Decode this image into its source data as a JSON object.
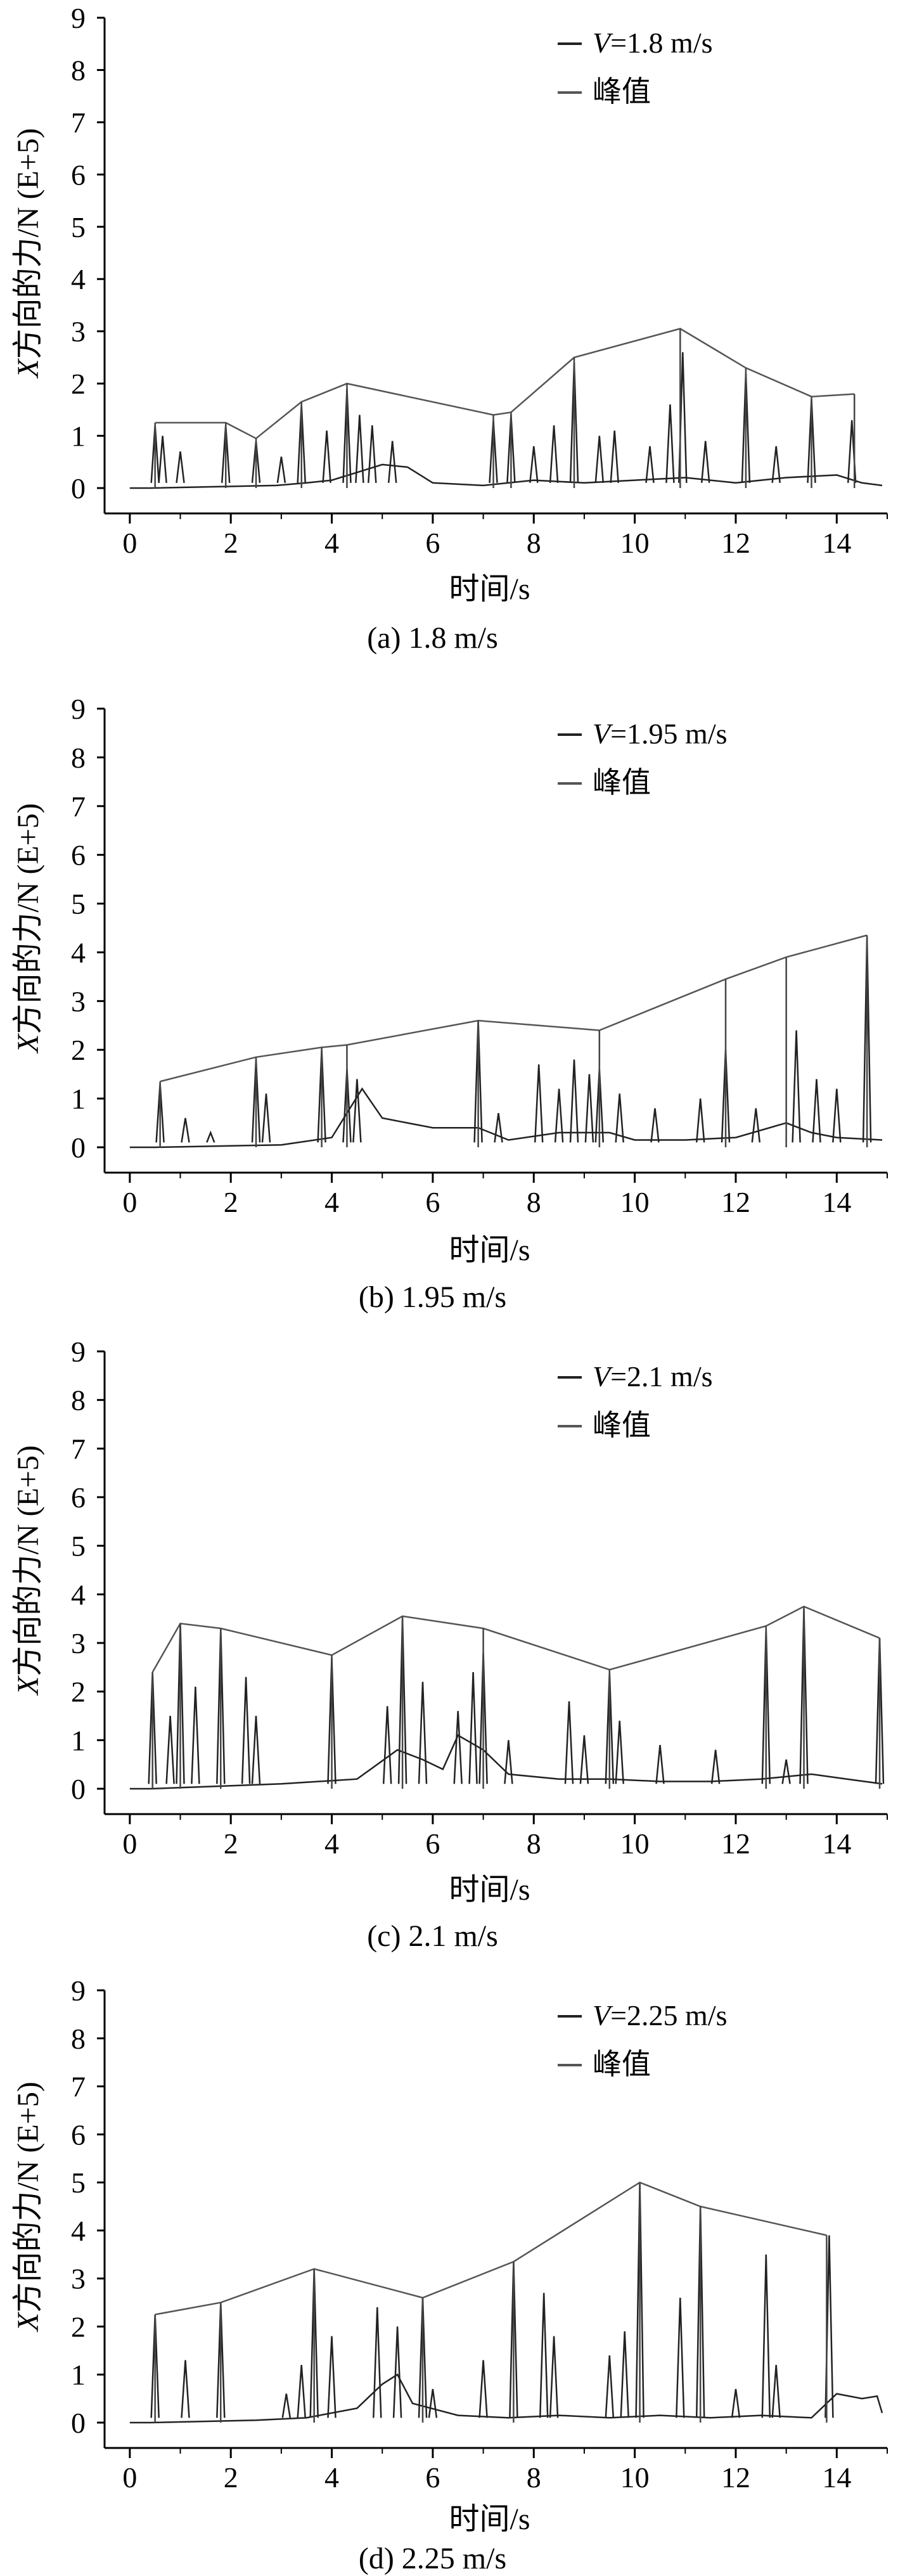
{
  "chart_data": [
    {
      "type": "line",
      "caption": "(a) 1.8 m/s",
      "xlabel": "时间/s",
      "ylabel": "X方向的力/N (E+5)",
      "xlim": [
        -0.5,
        15
      ],
      "ylim": [
        0,
        9
      ],
      "xticks": [
        0,
        2,
        4,
        6,
        8,
        10,
        12,
        14
      ],
      "yticks": [
        0,
        1,
        2,
        3,
        4,
        5,
        6,
        7,
        8,
        9
      ],
      "legend_position": "top-right",
      "series": [
        {
          "name": "V=1.8 m/s",
          "legend_prefix": "V",
          "legend_suffix": "=1.8 m/s",
          "spikes": [
            [
              0.5,
              1.2
            ],
            [
              0.65,
              1.0
            ],
            [
              1.0,
              0.7
            ],
            [
              1.9,
              1.2
            ],
            [
              2.5,
              0.9
            ],
            [
              3.0,
              0.6
            ],
            [
              3.4,
              1.6
            ],
            [
              3.9,
              1.1
            ],
            [
              4.3,
              1.9
            ],
            [
              4.55,
              1.4
            ],
            [
              4.8,
              1.2
            ],
            [
              5.2,
              0.9
            ],
            [
              7.2,
              1.3
            ],
            [
              7.55,
              1.4
            ],
            [
              8.0,
              0.8
            ],
            [
              8.4,
              1.2
            ],
            [
              8.8,
              2.4
            ],
            [
              9.3,
              1.0
            ],
            [
              9.6,
              1.1
            ],
            [
              10.3,
              0.8
            ],
            [
              10.7,
              1.6
            ],
            [
              10.95,
              2.6
            ],
            [
              11.4,
              0.9
            ],
            [
              12.2,
              2.2
            ],
            [
              12.8,
              0.8
            ],
            [
              13.5,
              1.7
            ],
            [
              14.3,
              1.3
            ]
          ],
          "baseline": [
            [
              0,
              0
            ],
            [
              0.4,
              0
            ],
            [
              2.9,
              0.05
            ],
            [
              3.5,
              0.1
            ],
            [
              4.0,
              0.15
            ],
            [
              4.5,
              0.3
            ],
            [
              5.0,
              0.45
            ],
            [
              5.5,
              0.4
            ],
            [
              6.0,
              0.1
            ],
            [
              7.0,
              0.05
            ],
            [
              8.0,
              0.15
            ],
            [
              9.0,
              0.1
            ],
            [
              10.0,
              0.15
            ],
            [
              11.0,
              0.2
            ],
            [
              12.0,
              0.1
            ],
            [
              13.0,
              0.2
            ],
            [
              14.0,
              0.25
            ],
            [
              14.5,
              0.1
            ],
            [
              14.9,
              0.05
            ]
          ]
        },
        {
          "name": "峰值",
          "label": "峰值",
          "x": [
            0.5,
            1.9,
            2.5,
            3.4,
            4.3,
            7.2,
            7.55,
            8.8,
            10.9,
            12.2,
            13.5,
            14.35
          ],
          "y": [
            1.25,
            1.25,
            0.95,
            1.65,
            2.0,
            1.4,
            1.45,
            2.5,
            3.05,
            2.3,
            1.75,
            1.8
          ]
        }
      ]
    },
    {
      "type": "line",
      "caption": "(b) 1.95 m/s",
      "xlabel": "时间/s",
      "ylabel": "X方向的力/N (E+5)",
      "xlim": [
        -0.5,
        15
      ],
      "ylim": [
        0,
        9
      ],
      "xticks": [
        0,
        2,
        4,
        6,
        8,
        10,
        12,
        14
      ],
      "yticks": [
        0,
        1,
        2,
        3,
        4,
        5,
        6,
        7,
        8,
        9
      ],
      "legend_position": "top-right",
      "series": [
        {
          "name": "V=1.95 m/s",
          "legend_prefix": "V",
          "legend_suffix": "=1.95 m/s",
          "spikes": [
            [
              0.6,
              1.3
            ],
            [
              1.1,
              0.6
            ],
            [
              1.6,
              0.3
            ],
            [
              2.5,
              1.8
            ],
            [
              2.7,
              1.1
            ],
            [
              3.8,
              2.0
            ],
            [
              4.3,
              1.6
            ],
            [
              4.5,
              1.4
            ],
            [
              6.9,
              2.6
            ],
            [
              7.3,
              0.7
            ],
            [
              8.1,
              1.7
            ],
            [
              8.5,
              1.2
            ],
            [
              8.8,
              1.8
            ],
            [
              9.1,
              1.5
            ],
            [
              9.3,
              1.6
            ],
            [
              9.7,
              1.1
            ],
            [
              10.4,
              0.8
            ],
            [
              11.3,
              1.0
            ],
            [
              11.8,
              2.0
            ],
            [
              12.4,
              0.8
            ],
            [
              13.2,
              2.4
            ],
            [
              13.6,
              1.4
            ],
            [
              14.0,
              1.2
            ],
            [
              14.6,
              4.3
            ]
          ],
          "baseline": [
            [
              0,
              0
            ],
            [
              0.5,
              0
            ],
            [
              3.0,
              0.05
            ],
            [
              4.0,
              0.2
            ],
            [
              4.6,
              1.2
            ],
            [
              5.0,
              0.6
            ],
            [
              5.5,
              0.5
            ],
            [
              6.0,
              0.4
            ],
            [
              6.9,
              0.4
            ],
            [
              7.5,
              0.15
            ],
            [
              8.5,
              0.3
            ],
            [
              9.5,
              0.3
            ],
            [
              10.0,
              0.15
            ],
            [
              11.0,
              0.15
            ],
            [
              12.0,
              0.2
            ],
            [
              13.0,
              0.5
            ],
            [
              13.5,
              0.3
            ],
            [
              14.0,
              0.2
            ],
            [
              14.9,
              0.15
            ]
          ]
        },
        {
          "name": "峰值",
          "label": "峰值",
          "x": [
            0.6,
            2.5,
            3.8,
            4.3,
            6.9,
            9.3,
            11.8,
            13.0,
            14.6
          ],
          "y": [
            1.35,
            1.85,
            2.05,
            2.1,
            2.6,
            2.4,
            3.45,
            3.9,
            4.35
          ]
        }
      ]
    },
    {
      "type": "line",
      "caption": "(c) 2.1 m/s",
      "xlabel": "时间/s",
      "ylabel": "X方向的力/N (E+5)",
      "xlim": [
        -0.5,
        15
      ],
      "ylim": [
        0,
        9
      ],
      "xticks": [
        0,
        2,
        4,
        6,
        8,
        10,
        12,
        14
      ],
      "yticks": [
        0,
        1,
        2,
        3,
        4,
        5,
        6,
        7,
        8,
        9
      ],
      "legend_position": "top-right",
      "series": [
        {
          "name": "V=2.1 m/s",
          "legend_prefix": "V",
          "legend_suffix": "=2.1 m/s",
          "spikes": [
            [
              0.45,
              2.4
            ],
            [
              0.8,
              1.5
            ],
            [
              1.0,
              3.4
            ],
            [
              1.3,
              2.1
            ],
            [
              1.8,
              3.3
            ],
            [
              2.3,
              2.3
            ],
            [
              2.5,
              1.5
            ],
            [
              4.0,
              2.7
            ],
            [
              5.1,
              1.7
            ],
            [
              5.4,
              3.5
            ],
            [
              5.8,
              2.2
            ],
            [
              6.5,
              1.6
            ],
            [
              6.8,
              2.4
            ],
            [
              7.0,
              2.8
            ],
            [
              7.5,
              1.0
            ],
            [
              8.7,
              1.8
            ],
            [
              9.0,
              1.1
            ],
            [
              9.5,
              2.4
            ],
            [
              9.7,
              1.4
            ],
            [
              10.5,
              0.9
            ],
            [
              11.6,
              0.8
            ],
            [
              12.6,
              3.3
            ],
            [
              13.0,
              0.6
            ],
            [
              13.35,
              3.7
            ],
            [
              14.85,
              3.1
            ]
          ],
          "baseline": [
            [
              0,
              0
            ],
            [
              0.4,
              0
            ],
            [
              3.0,
              0.1
            ],
            [
              4.5,
              0.2
            ],
            [
              5.3,
              0.8
            ],
            [
              5.8,
              0.6
            ],
            [
              6.2,
              0.4
            ],
            [
              6.5,
              1.1
            ],
            [
              7.0,
              0.8
            ],
            [
              7.5,
              0.3
            ],
            [
              8.5,
              0.2
            ],
            [
              9.5,
              0.2
            ],
            [
              10.5,
              0.15
            ],
            [
              11.5,
              0.15
            ],
            [
              12.5,
              0.2
            ],
            [
              13.5,
              0.3
            ],
            [
              14.2,
              0.2
            ],
            [
              14.9,
              0.1
            ]
          ]
        },
        {
          "name": "峰值",
          "label": "峰值",
          "x": [
            0.45,
            1.0,
            1.8,
            4.0,
            5.4,
            7.0,
            9.5,
            12.6,
            13.35,
            14.85
          ],
          "y": [
            2.4,
            3.4,
            3.3,
            2.75,
            3.55,
            3.3,
            2.45,
            3.35,
            3.75,
            3.1
          ]
        }
      ]
    },
    {
      "type": "line",
      "caption": "(d) 2.25 m/s",
      "xlabel": "时间/s",
      "ylabel": "X方向的力/N (E+5)",
      "xlim": [
        -0.5,
        15
      ],
      "ylim": [
        0,
        9
      ],
      "xticks": [
        0,
        2,
        4,
        6,
        8,
        10,
        12,
        14
      ],
      "yticks": [
        0,
        1,
        2,
        3,
        4,
        5,
        6,
        7,
        8,
        9
      ],
      "legend_position": "top-right",
      "series": [
        {
          "name": "V=2.25 m/s",
          "legend_prefix": "V",
          "legend_suffix": "=2.25 m/s",
          "spikes": [
            [
              0.5,
              2.25
            ],
            [
              1.1,
              1.3
            ],
            [
              1.8,
              2.5
            ],
            [
              3.1,
              0.6
            ],
            [
              3.4,
              1.2
            ],
            [
              3.65,
              3.2
            ],
            [
              4.0,
              1.8
            ],
            [
              4.9,
              2.4
            ],
            [
              5.3,
              2.0
            ],
            [
              5.8,
              2.6
            ],
            [
              6.0,
              0.7
            ],
            [
              7.0,
              1.3
            ],
            [
              7.6,
              3.35
            ],
            [
              8.2,
              2.7
            ],
            [
              8.4,
              1.8
            ],
            [
              9.5,
              1.4
            ],
            [
              9.8,
              1.9
            ],
            [
              10.1,
              5.0
            ],
            [
              10.9,
              2.6
            ],
            [
              11.3,
              4.5
            ],
            [
              12.0,
              0.7
            ],
            [
              12.6,
              3.5
            ],
            [
              12.8,
              1.2
            ],
            [
              13.85,
              3.9
            ]
          ],
          "baseline": [
            [
              0,
              0
            ],
            [
              0.4,
              0
            ],
            [
              2.5,
              0.05
            ],
            [
              3.5,
              0.1
            ],
            [
              4.5,
              0.3
            ],
            [
              5.0,
              0.8
            ],
            [
              5.3,
              1.0
            ],
            [
              5.6,
              0.4
            ],
            [
              6.5,
              0.15
            ],
            [
              7.5,
              0.1
            ],
            [
              8.5,
              0.15
            ],
            [
              9.5,
              0.1
            ],
            [
              10.5,
              0.15
            ],
            [
              11.5,
              0.1
            ],
            [
              12.5,
              0.15
            ],
            [
              13.5,
              0.1
            ],
            [
              14.0,
              0.6
            ],
            [
              14.5,
              0.5
            ],
            [
              14.8,
              0.55
            ],
            [
              14.9,
              0.2
            ]
          ]
        },
        {
          "name": "峰值",
          "label": "峰值",
          "x": [
            0.5,
            1.8,
            3.65,
            5.8,
            7.6,
            10.1,
            11.3,
            13.8
          ],
          "y": [
            2.25,
            2.5,
            3.2,
            2.6,
            3.35,
            5.0,
            4.5,
            3.9
          ]
        }
      ]
    }
  ]
}
